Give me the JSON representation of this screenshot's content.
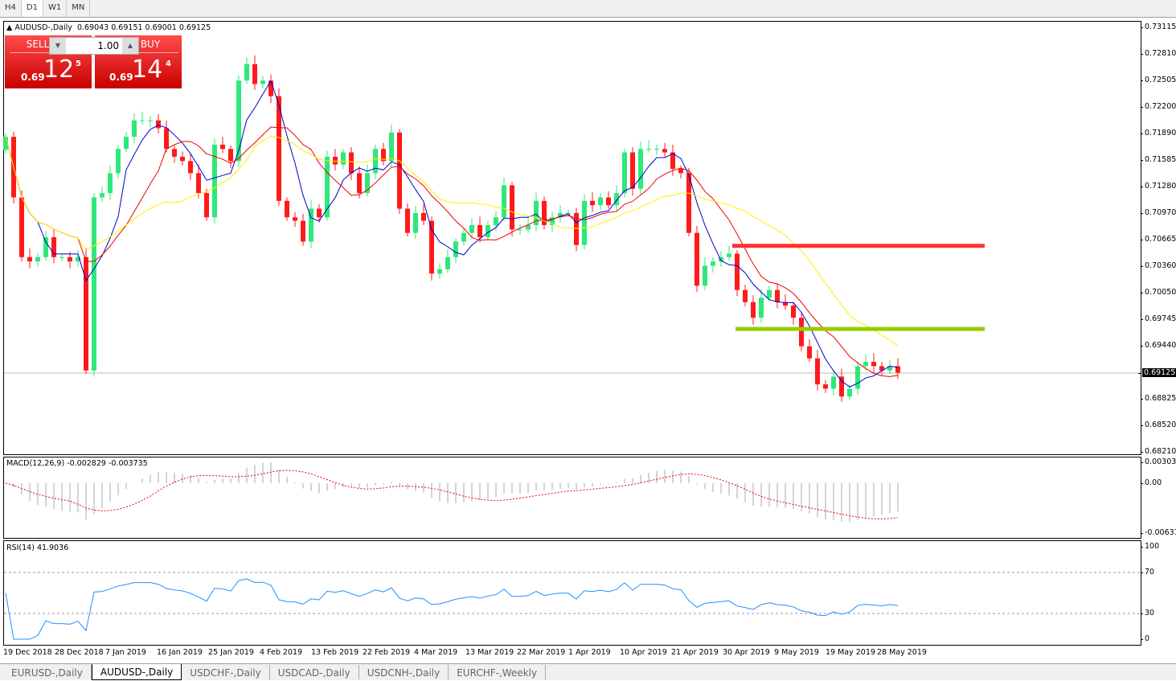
{
  "timeframes": [
    "H4",
    "D1",
    "W1",
    "MN"
  ],
  "active_timeframe": "D1",
  "chart": {
    "title": "AUDUSD-,Daily",
    "ohlc": "0.69043 0.69151 0.69001 0.69125",
    "current_price": "0.69125"
  },
  "trade_panel": {
    "sell_label": "SELL",
    "buy_label": "BUY",
    "lot": "1.00",
    "sell_prefix": "0.69",
    "sell_big": "12",
    "sell_sup": "5",
    "buy_prefix": "0.69",
    "buy_big": "14",
    "buy_sup": "4"
  },
  "price_axis": [
    "0.73115",
    "0.72810",
    "0.72505",
    "0.72200",
    "0.71890",
    "0.71585",
    "0.71280",
    "0.70970",
    "0.70665",
    "0.70360",
    "0.70050",
    "0.69745",
    "0.69440",
    "0.68825",
    "0.68520",
    "0.68210"
  ],
  "macd": {
    "label": "MACD(12,26,9) -0.002829 -0.003735",
    "axis": [
      "0.003035",
      "0.00",
      "-0.006311"
    ]
  },
  "rsi": {
    "label": "RSI(14) 41.9036",
    "axis": [
      "100",
      "70",
      "30",
      "0"
    ]
  },
  "dates": [
    "19 Dec 2018",
    "28 Dec 2018",
    "7 Jan 2019",
    "16 Jan 2019",
    "25 Jan 2019",
    "4 Feb 2019",
    "13 Feb 2019",
    "22 Feb 2019",
    "4 Mar 2019",
    "13 Mar 2019",
    "22 Mar 2019",
    "1 Apr 2019",
    "10 Apr 2019",
    "21 Apr 2019",
    "30 Apr 2019",
    "9 May 2019",
    "19 May 2019",
    "28 May 2019"
  ],
  "tabs": [
    "EURUSD-,Daily",
    "AUDUSD-,Daily",
    "USDCHF-,Daily",
    "USDCAD-,Daily",
    "USDCNH-,Daily",
    "EURCHF-,Weekly"
  ],
  "active_tab": "AUDUSD-,Daily",
  "colors": {
    "bull": "#2ee87a",
    "bear": "#ff1a1a",
    "ma_fast": "#0000cc",
    "ma_mid": "#ee0000",
    "ma_slow": "#ffee00",
    "resistance": "#ff3333",
    "support": "#99cc00"
  },
  "chart_data": {
    "type": "candlestick",
    "first_open": 0.717,
    "closes": [
      0.7185,
      0.7115,
      0.7046,
      0.7041,
      0.7046,
      0.7069,
      0.7046,
      0.7046,
      0.7041,
      0.7046,
      0.6915,
      0.7115,
      0.712,
      0.7143,
      0.7171,
      0.7185,
      0.7204,
      0.7204,
      0.7204,
      0.7195,
      0.7171,
      0.7162,
      0.7157,
      0.7143,
      0.712,
      0.7092,
      0.7176,
      0.7171,
      0.7157,
      0.725,
      0.7269,
      0.7246,
      0.725,
      0.7232,
      0.7111,
      0.7092,
      0.7088,
      0.7064,
      0.7102,
      0.7092,
      0.7162,
      0.7153,
      0.7167,
      0.7143,
      0.712,
      0.7143,
      0.7171,
      0.7157,
      0.719,
      0.7102,
      0.7074,
      0.7097,
      0.7088,
      0.7027,
      0.7032,
      0.7046,
      0.7064,
      0.7074,
      0.7083,
      0.7069,
      0.7083,
      0.7092,
      0.7129,
      0.7078,
      0.7078,
      0.7083,
      0.7111,
      0.7083,
      0.7092,
      0.7097,
      0.7097,
      0.706,
      0.7111,
      0.7106,
      0.7115,
      0.7106,
      0.712,
      0.7167,
      0.7125,
      0.7171,
      0.7171,
      0.7171,
      0.7167,
      0.7148,
      0.7143,
      0.7074,
      0.7013,
      0.7036,
      0.7041,
      0.7046,
      0.705,
      0.7008,
      0.6994,
      0.6976,
      0.6999,
      0.7008,
      0.6994,
      0.699,
      0.6976,
      0.6943,
      0.6929,
      0.6899,
      0.6894,
      0.6908,
      0.6885,
      0.6894,
      0.692,
      0.6925,
      0.692,
      0.6915,
      0.692,
      0.69125
    ],
    "horizontal_levels": [
      0.7059,
      0.6963
    ],
    "ylim": [
      0.6821,
      0.73115
    ]
  }
}
